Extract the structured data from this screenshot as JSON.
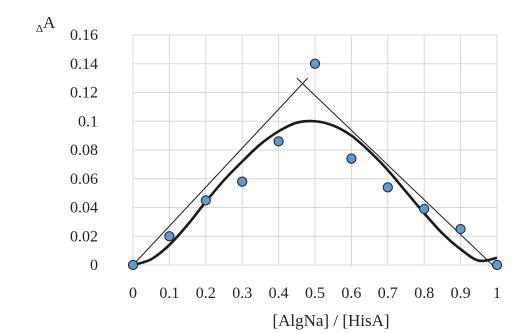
{
  "chart_data": {
    "type": "scatter",
    "title": "",
    "xlabel": "[AlgNa] / [HisA]",
    "ylabel_prefix": "Δ",
    "ylabel_main": "A",
    "xlim": [
      0,
      1
    ],
    "ylim": [
      0,
      0.16
    ],
    "x_ticks": [
      0,
      0.1,
      0.2,
      0.3,
      0.4,
      0.5,
      0.6,
      0.7,
      0.8,
      0.9,
      1
    ],
    "x_tick_labels": [
      "0",
      "0.1",
      "0.2",
      "0.3",
      "0.4",
      "0.5",
      "0.6",
      "0.7",
      "0.8",
      "0.9",
      "1"
    ],
    "y_ticks": [
      0,
      0.02,
      0.04,
      0.06,
      0.08,
      0.1,
      0.12,
      0.14,
      0.16
    ],
    "y_tick_labels": [
      "0",
      "0.02",
      "0.04",
      "0.06",
      "0.08",
      "0.1",
      "0.12",
      "0.14",
      "0.16"
    ],
    "grid": true,
    "points": {
      "x": [
        0,
        0.1,
        0.2,
        0.3,
        0.4,
        0.5,
        0.6,
        0.7,
        0.8,
        0.9,
        1
      ],
      "y": [
        0,
        0.02,
        0.045,
        0.058,
        0.086,
        0.14,
        0.074,
        0.054,
        0.039,
        0.025,
        0
      ]
    },
    "fit_curve": {
      "x": [
        0,
        0.05,
        0.1,
        0.15,
        0.2,
        0.25,
        0.3,
        0.35,
        0.4,
        0.45,
        0.5,
        0.55,
        0.6,
        0.65,
        0.7,
        0.75,
        0.8,
        0.85,
        0.9,
        0.95,
        1
      ],
      "y": [
        0,
        0.004,
        0.014,
        0.028,
        0.044,
        0.059,
        0.072,
        0.084,
        0.093,
        0.099,
        0.1,
        0.097,
        0.09,
        0.079,
        0.066,
        0.051,
        0.036,
        0.022,
        0.011,
        0.003,
        0.005
      ]
    },
    "tangent_lines": [
      {
        "x": [
          0,
          0.48
        ],
        "y": [
          0,
          0.13
        ]
      },
      {
        "x": [
          0.45,
          1
        ],
        "y": [
          0.13,
          -0.003
        ]
      }
    ],
    "colors": {
      "marker_fill": "#5B9BD5",
      "marker_stroke": "#1F1F1F",
      "curve": "#1a1a1a",
      "tangent": "#1a1a1a",
      "grid": "#d9d9d9"
    }
  }
}
